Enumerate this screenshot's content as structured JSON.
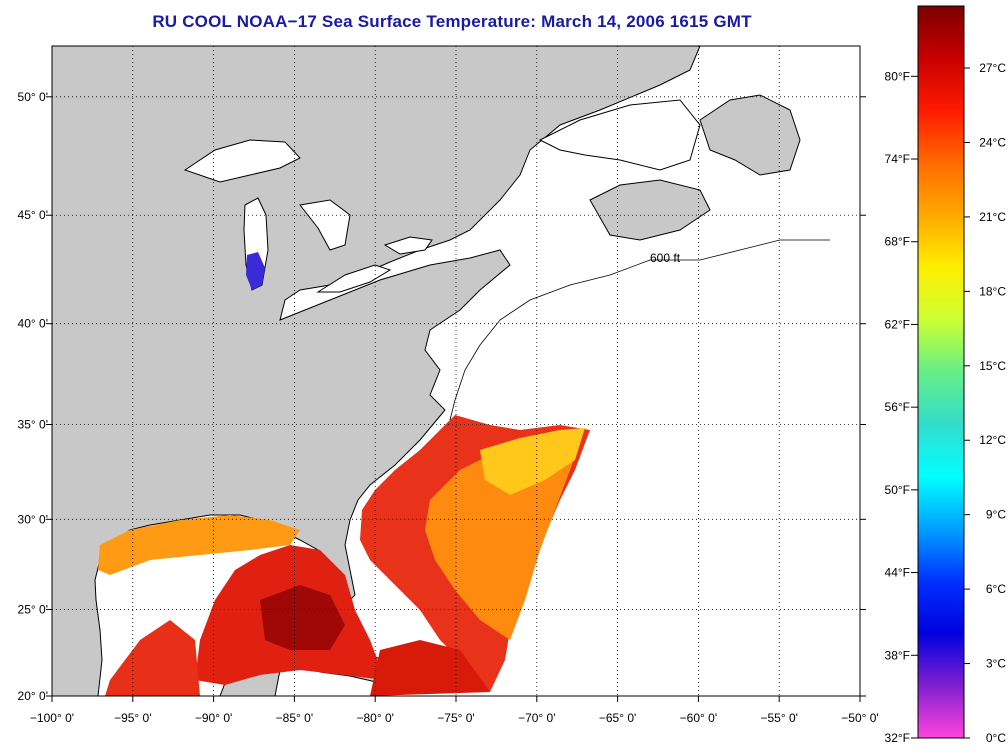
{
  "title": "RU COOL  NOAA−17  Sea Surface Temperature:  March 14, 2006 1615 GMT",
  "map": {
    "longitude_range": [
      -100,
      -50
    ],
    "latitude_range": [
      20,
      52
    ],
    "lon_ticks": [
      {
        "value": -100,
        "label": "−100° 0'"
      },
      {
        "value": -95,
        "label": "−95° 0'"
      },
      {
        "value": -90,
        "label": "−90° 0'"
      },
      {
        "value": -85,
        "label": "−85° 0'"
      },
      {
        "value": -80,
        "label": "−80° 0'"
      },
      {
        "value": -75,
        "label": "−75° 0'"
      },
      {
        "value": -70,
        "label": "−70° 0'"
      },
      {
        "value": -65,
        "label": "−65° 0'"
      },
      {
        "value": -60,
        "label": "−60° 0'"
      },
      {
        "value": -55,
        "label": "−55° 0'"
      },
      {
        "value": -50,
        "label": "−50° 0'"
      }
    ],
    "lat_ticks": [
      {
        "value": 20,
        "label": "20° 0'"
      },
      {
        "value": 25,
        "label": "25° 0'"
      },
      {
        "value": 30,
        "label": "30° 0'"
      },
      {
        "value": 35,
        "label": "35° 0'"
      },
      {
        "value": 40,
        "label": "40° 0'"
      },
      {
        "value": 45,
        "label": "45° 0'"
      },
      {
        "value": 50,
        "label": "50° 0'"
      }
    ],
    "grid": "dotted",
    "land_color": "#c8c8c8",
    "ocean_nodata_color": "#ffffff",
    "isobath_label": "600 ft"
  },
  "colorbar": {
    "fahrenheit_labels": [
      "80°F",
      "74°F",
      "68°F",
      "62°F",
      "56°F",
      "50°F",
      "44°F",
      "38°F",
      "32°F"
    ],
    "celsius_labels": [
      "27°C",
      "24°C",
      "21°C",
      "18°C",
      "15°C",
      "12°C",
      "9°C",
      "6°C",
      "3°C",
      "0°C"
    ],
    "fahrenheit_values": [
      80,
      74,
      68,
      62,
      56,
      50,
      44,
      38,
      32
    ],
    "celsius_values": [
      27,
      24,
      21,
      18,
      15,
      12,
      9,
      6,
      3,
      0
    ],
    "max_celsius": 29.5,
    "min_celsius": 0,
    "colors_top_to_bottom": [
      "#7a0000",
      "#c80000",
      "#ff1a00",
      "#ff6a00",
      "#ffaa00",
      "#ffee00",
      "#ccff33",
      "#66ee88",
      "#33ddcc",
      "#00ffff",
      "#00a0ff",
      "#0030ff",
      "#0000dd",
      "#8020d0",
      "#ff44dd"
    ]
  }
}
